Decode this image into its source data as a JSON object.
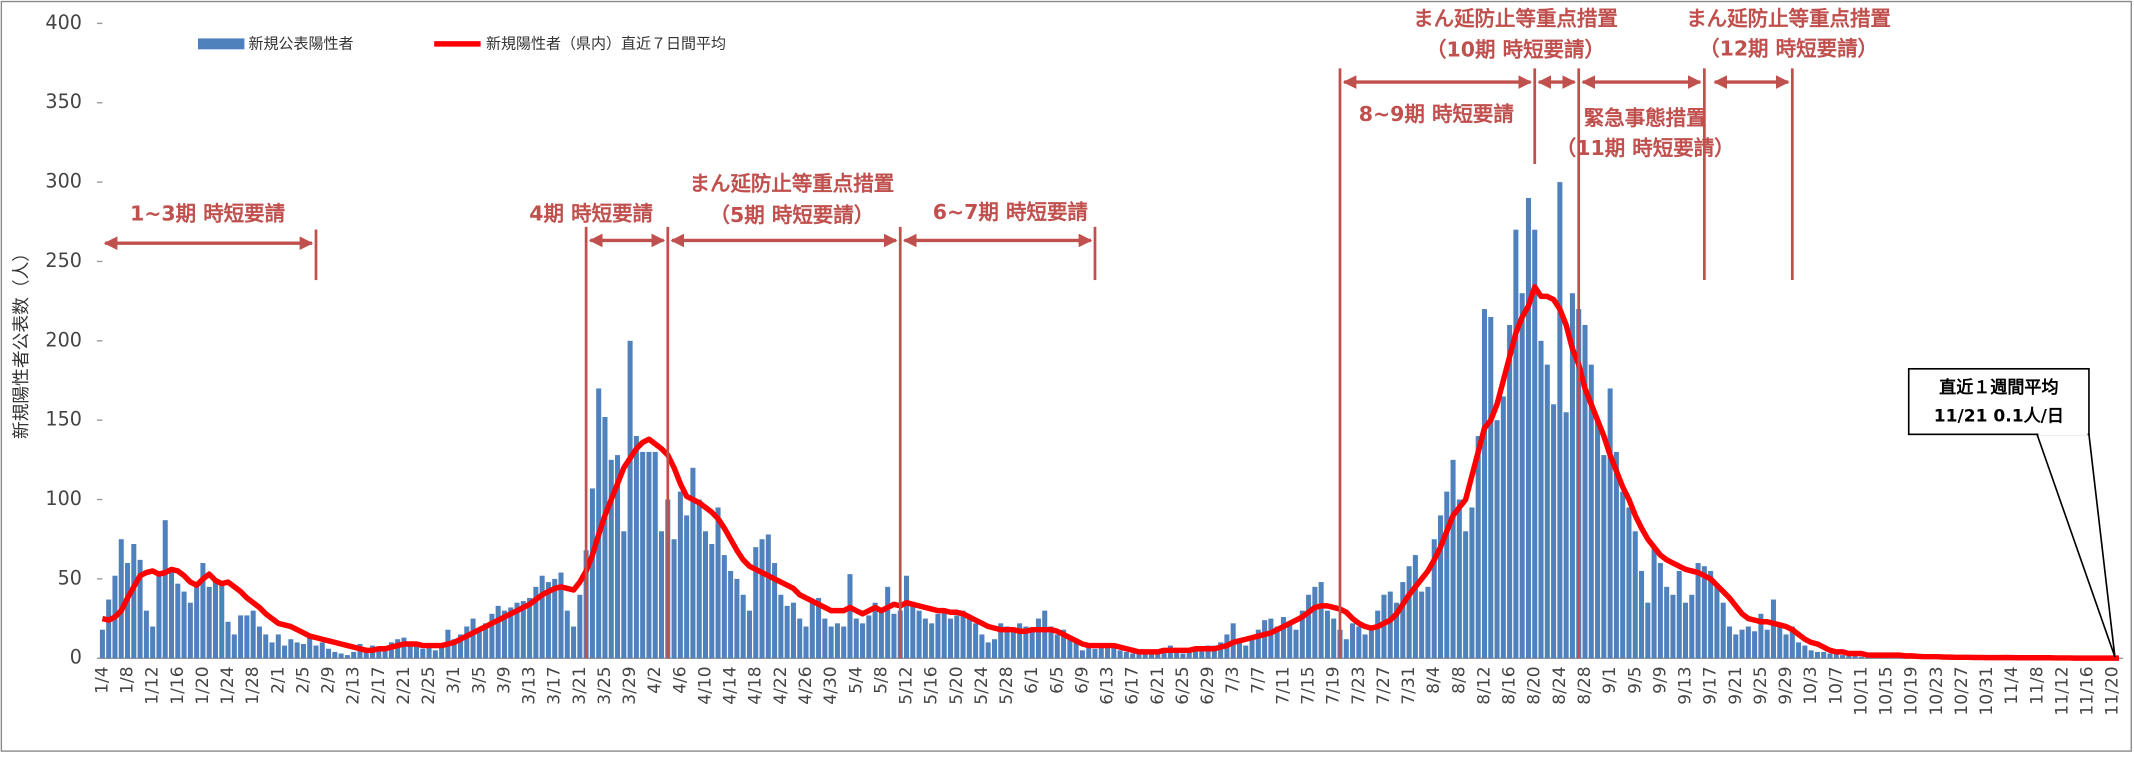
{
  "chart_data": {
    "type": "bar",
    "y_label": "新規陽性者公表数（人）",
    "ylim": [
      0,
      400
    ],
    "yticks": [
      0,
      50,
      100,
      150,
      200,
      250,
      300,
      350,
      400
    ],
    "grid": false,
    "categories": [
      "1/4",
      null,
      null,
      null,
      "1/8",
      null,
      null,
      null,
      "1/12",
      null,
      null,
      null,
      "1/16",
      null,
      null,
      null,
      "1/20",
      null,
      null,
      null,
      "1/24",
      null,
      null,
      null,
      "1/28",
      null,
      null,
      null,
      "2/1",
      null,
      null,
      null,
      "2/5",
      null,
      null,
      null,
      "2/9",
      null,
      null,
      null,
      "2/13",
      null,
      null,
      null,
      "2/17",
      null,
      null,
      null,
      "2/21",
      null,
      null,
      null,
      "2/25",
      null,
      null,
      null,
      "3/1",
      null,
      null,
      null,
      "3/5",
      null,
      null,
      null,
      "3/9",
      null,
      null,
      null,
      "3/13",
      null,
      null,
      null,
      "3/17",
      null,
      null,
      null,
      "3/21",
      null,
      null,
      null,
      "3/25",
      null,
      null,
      null,
      "3/29",
      null,
      null,
      null,
      "4/2",
      null,
      null,
      null,
      "4/6",
      null,
      null,
      null,
      "4/10",
      null,
      null,
      null,
      "4/14",
      null,
      null,
      null,
      "4/18",
      null,
      null,
      null,
      "4/22",
      null,
      null,
      null,
      "4/26",
      null,
      null,
      null,
      "4/30",
      null,
      null,
      null,
      "5/4",
      null,
      null,
      null,
      "5/8",
      null,
      null,
      null,
      "5/12",
      null,
      null,
      null,
      "5/16",
      null,
      null,
      null,
      "5/20",
      null,
      null,
      null,
      "5/24",
      null,
      null,
      null,
      "5/28",
      null,
      null,
      null,
      "6/1",
      null,
      null,
      null,
      "6/5",
      null,
      null,
      null,
      "6/9",
      null,
      null,
      null,
      "6/13",
      null,
      null,
      null,
      "6/17",
      null,
      null,
      null,
      "6/21",
      null,
      null,
      null,
      "6/25",
      null,
      null,
      null,
      "6/29",
      null,
      null,
      null,
      "7/3",
      null,
      null,
      null,
      "7/7",
      null,
      null,
      null,
      "7/11",
      null,
      null,
      null,
      "7/15",
      null,
      null,
      null,
      "7/19",
      null,
      null,
      null,
      "7/23",
      null,
      null,
      null,
      "7/27",
      null,
      null,
      null,
      "7/31",
      null,
      null,
      null,
      "8/4",
      null,
      null,
      null,
      "8/8",
      null,
      null,
      null,
      "8/12",
      null,
      null,
      null,
      "8/16",
      null,
      null,
      null,
      "8/20",
      null,
      null,
      null,
      "8/24",
      null,
      null,
      null,
      "8/28",
      null,
      null,
      null,
      "9/1",
      null,
      null,
      null,
      "9/5",
      null,
      null,
      null,
      "9/9",
      null,
      null,
      null,
      "9/13",
      null,
      null,
      null,
      "9/17",
      null,
      null,
      null,
      "9/21",
      null,
      null,
      null,
      "9/25",
      null,
      null,
      null,
      "9/29",
      null,
      null,
      null,
      "10/3",
      null,
      null,
      null,
      "10/7",
      null,
      null,
      null,
      "10/11",
      null,
      null,
      null,
      "10/15",
      null,
      null,
      null,
      "10/19",
      null,
      null,
      null,
      "10/23",
      null,
      null,
      null,
      "10/27",
      null,
      null,
      null,
      "10/31",
      null,
      null,
      null,
      "11/4",
      null,
      null,
      null,
      "11/8",
      null,
      null,
      null,
      "11/12",
      null,
      null,
      null,
      "11/16",
      null,
      null,
      null,
      "11/20",
      null
    ],
    "series": [
      {
        "name": "新規公表陽性者",
        "type": "bar",
        "color": "#4f81bd",
        "values": [
          18,
          37,
          52,
          75,
          60,
          72,
          62,
          30,
          20,
          55,
          87,
          55,
          47,
          42,
          35,
          48,
          60,
          45,
          50,
          48,
          23,
          15,
          27,
          27,
          30,
          20,
          15,
          10,
          15,
          8,
          12,
          10,
          9,
          13,
          8,
          10,
          6,
          4,
          3,
          2,
          4,
          9,
          5,
          8,
          6,
          7,
          10,
          12,
          13,
          9,
          8,
          6,
          7,
          5,
          8,
          18,
          12,
          15,
          20,
          25,
          18,
          22,
          28,
          33,
          30,
          32,
          35,
          36,
          38,
          45,
          52,
          48,
          50,
          54,
          30,
          20,
          40,
          68,
          107,
          170,
          152,
          125,
          128,
          80,
          200,
          140,
          130,
          130,
          130,
          80,
          100,
          75,
          105,
          90,
          120,
          100,
          80,
          72,
          95,
          65,
          55,
          50,
          40,
          30,
          70,
          75,
          78,
          60,
          40,
          33,
          35,
          25,
          20,
          35,
          38,
          25,
          20,
          22,
          20,
          53,
          25,
          22,
          27,
          35,
          30,
          45,
          28,
          30,
          52,
          35,
          30,
          25,
          22,
          28,
          30,
          25,
          27,
          30,
          25,
          22,
          15,
          10,
          12,
          22,
          20,
          18,
          22,
          20,
          18,
          25,
          30,
          20,
          15,
          18,
          12,
          10,
          5,
          8,
          6,
          7,
          8,
          7,
          5,
          4,
          3,
          4,
          3,
          4,
          5,
          6,
          8,
          5,
          3,
          4,
          5,
          6,
          8,
          8,
          10,
          15,
          22,
          12,
          8,
          14,
          18,
          24,
          25,
          20,
          26,
          22,
          18,
          30,
          40,
          45,
          48,
          30,
          25,
          18,
          12,
          22,
          20,
          15,
          18,
          30,
          40,
          42,
          35,
          48,
          58,
          65,
          42,
          45,
          75,
          90,
          105,
          125,
          100,
          80,
          95,
          140,
          220,
          215,
          150,
          165,
          210,
          270,
          230,
          290,
          270,
          200,
          185,
          160,
          300,
          155,
          230,
          220,
          210,
          185,
          150,
          128,
          170,
          130,
          105,
          95,
          80,
          55,
          35,
          70,
          60,
          45,
          40,
          55,
          35,
          40,
          60,
          58,
          55,
          45,
          35,
          20,
          15,
          18,
          20,
          17,
          28,
          18,
          37,
          22,
          15,
          20,
          10,
          8,
          5,
          4,
          4,
          3,
          3,
          2,
          2,
          2,
          1,
          1,
          1,
          1,
          2,
          1,
          1,
          1,
          0,
          0,
          1,
          0,
          0,
          1,
          0,
          1,
          0,
          0,
          1,
          0,
          0,
          0,
          0,
          1,
          0,
          0,
          0,
          1,
          0,
          0,
          0,
          0,
          0,
          0,
          0,
          0,
          0,
          0,
          0,
          0,
          0,
          0
        ]
      },
      {
        "name": "新規陽性者（県内）直近７日間平均",
        "type": "line",
        "color": "#ff0000",
        "values": [
          25,
          24,
          26,
          30,
          38,
          45,
          52,
          54,
          55,
          53,
          54,
          56,
          55,
          52,
          48,
          46,
          50,
          53,
          49,
          47,
          48,
          45,
          42,
          38,
          35,
          32,
          28,
          25,
          22,
          21,
          20,
          18,
          16,
          14,
          13,
          12,
          11,
          10,
          9,
          8,
          7,
          6,
          5,
          5,
          6,
          6,
          7,
          8,
          9,
          9,
          9,
          8,
          8,
          8,
          8,
          9,
          10,
          12,
          14,
          16,
          18,
          20,
          22,
          24,
          26,
          28,
          30,
          32,
          34,
          37,
          40,
          42,
          44,
          45,
          44,
          43,
          48,
          55,
          65,
          78,
          90,
          100,
          110,
          120,
          126,
          132,
          136,
          138,
          135,
          132,
          128,
          120,
          110,
          102,
          100,
          98,
          95,
          92,
          88,
          82,
          75,
          68,
          62,
          58,
          56,
          54,
          52,
          50,
          48,
          46,
          44,
          40,
          38,
          36,
          34,
          32,
          30,
          30,
          30,
          32,
          30,
          28,
          30,
          32,
          30,
          32,
          34,
          33,
          35,
          34,
          33,
          32,
          31,
          30,
          30,
          29,
          29,
          28,
          26,
          24,
          22,
          20,
          19,
          18,
          18,
          18,
          17,
          17,
          18,
          18,
          18,
          18,
          17,
          15,
          13,
          11,
          9,
          8,
          8,
          8,
          8,
          8,
          7,
          6,
          5,
          4,
          4,
          4,
          4,
          5,
          5,
          5,
          5,
          5,
          6,
          6,
          6,
          6,
          7,
          8,
          10,
          11,
          12,
          13,
          14,
          15,
          16,
          18,
          20,
          22,
          24,
          26,
          29,
          32,
          33,
          33,
          32,
          31,
          29,
          25,
          22,
          20,
          19,
          20,
          22,
          24,
          28,
          34,
          40,
          45,
          50,
          55,
          62,
          70,
          80,
          90,
          95,
          100,
          115,
          130,
          145,
          150,
          160,
          175,
          190,
          205,
          215,
          222,
          234,
          228,
          228,
          226,
          220,
          210,
          195,
          185,
          170,
          160,
          150,
          140,
          128,
          118,
          108,
          100,
          90,
          82,
          75,
          70,
          65,
          62,
          60,
          58,
          56,
          55,
          54,
          52,
          50,
          46,
          42,
          38,
          33,
          28,
          25,
          24,
          23,
          23,
          22,
          21,
          20,
          18,
          15,
          12,
          10,
          9,
          7,
          5,
          4,
          4,
          3,
          3,
          3,
          2,
          2,
          2,
          2,
          2,
          2,
          1.5,
          1.5,
          1.2,
          1,
          1,
          1,
          0.8,
          0.7,
          0.6,
          0.6,
          0.6,
          0.5,
          0.5,
          0.4,
          0.4,
          0.4,
          0.5,
          0.4,
          0.3,
          0.3,
          0.3,
          0.3,
          0.3,
          0.3,
          0.2,
          0.2,
          0.2,
          0.1,
          0.1,
          0.1,
          0.1,
          0.1,
          0.1,
          0.1,
          0.1
        ]
      }
    ],
    "annotations": [
      {
        "text": [
          "1~3期 時短要請"
        ]
      },
      {
        "text": [
          "4期 時短要請"
        ]
      },
      {
        "text": [
          "まん延防止等重点措置",
          "（5期 時短要請）"
        ]
      },
      {
        "text": [
          "6~7期 時短要請"
        ]
      },
      {
        "text": [
          "8~9期 時短要請"
        ]
      },
      {
        "text": [
          "まん延防止等重点措置",
          "（10期 時短要請）"
        ]
      },
      {
        "text": [
          "緊急事態措置",
          "（11期 時短要請）"
        ]
      },
      {
        "text": [
          "まん延防止等重点措置",
          "（12期 時短要請）"
        ]
      }
    ],
    "callout": [
      "直近１週間平均",
      "11/21 0.1人/日"
    ]
  }
}
